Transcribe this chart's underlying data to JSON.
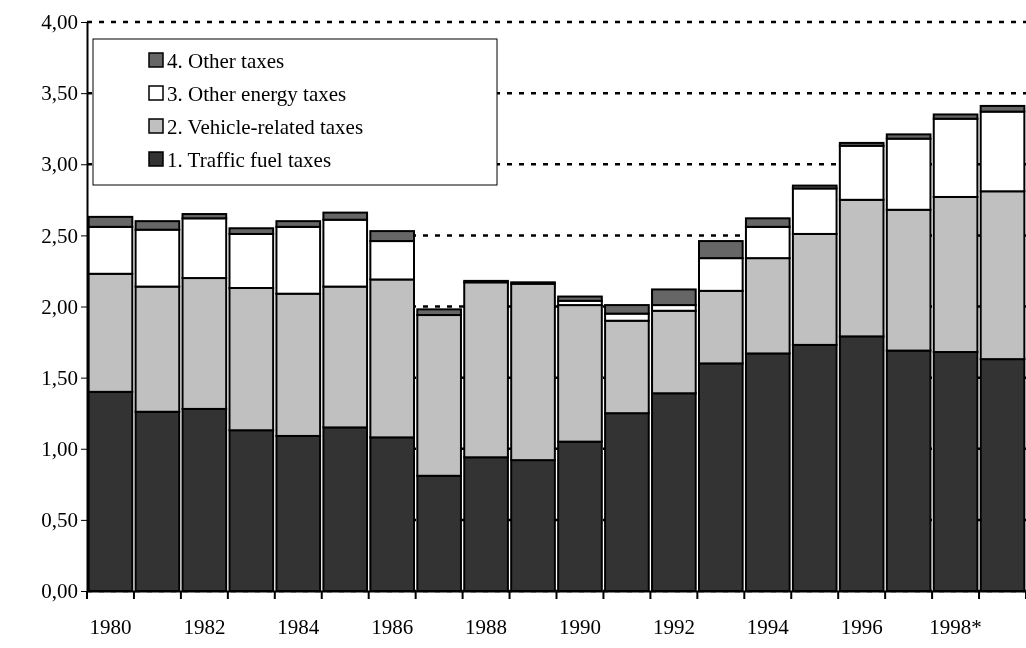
{
  "chart_data": {
    "type": "bar",
    "stacked": true,
    "grid": "y",
    "legend": "top left",
    "categories": [
      "1980",
      null,
      "1982",
      null,
      "1984",
      null,
      "1986",
      null,
      "1988",
      null,
      "1990",
      null,
      "1992",
      null,
      "1994",
      null,
      "1996",
      null,
      "1998*",
      null
    ],
    "ylim": [
      0,
      4
    ],
    "yticks": [
      {
        "value": 0,
        "label": "0,00"
      },
      {
        "value": 0.5,
        "label": "0,50"
      },
      {
        "value": 1,
        "label": "1,00"
      },
      {
        "value": 1.5,
        "label": "1,50"
      },
      {
        "value": 2,
        "label": "2,00"
      },
      {
        "value": 2.5,
        "label": "2,50"
      },
      {
        "value": 3,
        "label": "3,00"
      },
      {
        "value": 3.5,
        "label": "3,50"
      },
      {
        "value": 4,
        "label": "4,00"
      }
    ],
    "series": [
      {
        "name": "1. Traffic fuel taxes",
        "color": "#333333",
        "values": [
          1.4,
          1.26,
          1.28,
          1.13,
          1.09,
          1.15,
          1.08,
          0.81,
          0.94,
          0.92,
          1.05,
          1.25,
          1.39,
          1.6,
          1.67,
          1.73,
          1.79,
          1.69,
          1.68,
          1.63
        ]
      },
      {
        "name": "2. Vehicle-related taxes",
        "color": "#c0c0c0",
        "values": [
          0.83,
          0.88,
          0.92,
          1.0,
          1.0,
          0.99,
          1.11,
          1.13,
          1.23,
          1.24,
          0.96,
          0.65,
          0.58,
          0.51,
          0.67,
          0.78,
          0.96,
          0.99,
          1.09,
          1.18
        ]
      },
      {
        "name": "3. Other energy taxes",
        "color": "#ffffff",
        "values": [
          0.33,
          0.4,
          0.42,
          0.38,
          0.47,
          0.47,
          0.27,
          0,
          0,
          0,
          0.03,
          0.05,
          0.04,
          0.23,
          0.22,
          0.32,
          0.38,
          0.5,
          0.55,
          0.56
        ]
      },
      {
        "name": "4. Other taxes",
        "color": "#666666",
        "values": [
          0.07,
          0.06,
          0.03,
          0.04,
          0.04,
          0.05,
          0.07,
          0.04,
          0.01,
          0.01,
          0.03,
          0.06,
          0.11,
          0.12,
          0.06,
          0.02,
          0.02,
          0.03,
          0.03,
          0.04
        ]
      }
    ]
  }
}
